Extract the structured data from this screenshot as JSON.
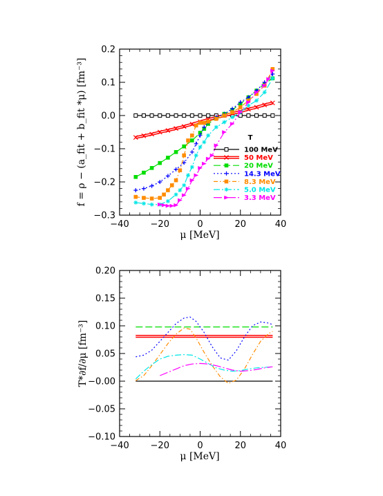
{
  "colors": {
    "black": "#000000",
    "red": "#ff0000",
    "green": "#00dd00",
    "blue": "#0000ff",
    "orange": "#ff8c00",
    "cyan": "#00e5e5",
    "magenta": "#ff00ff"
  },
  "chart_data": [
    {
      "type": "line",
      "panel": "top",
      "xlabel": "μ [MeV]",
      "ylabel": "f = ρ − (a_fit + b_fit *μ) [fm⁻³]",
      "xlim": [
        -40,
        40
      ],
      "ylim": [
        -0.3,
        0.2
      ],
      "xticks": [
        "−40",
        "−20",
        "0",
        "20",
        "40"
      ],
      "yticks": [
        "−0.3",
        "−0.2",
        "−0.1",
        "0.0",
        "0.1",
        "0.2"
      ],
      "legend_title": "T",
      "legend_position": "lower-right",
      "series": [
        {
          "name": "100 MeV",
          "color": "#000000",
          "marker": "square-open",
          "dash": "solid",
          "x": [
            -32,
            -28,
            -24,
            -20,
            -16,
            -12,
            -8,
            -4,
            0,
            4,
            8,
            12,
            16,
            20,
            24,
            28,
            32,
            36
          ],
          "y": [
            0,
            0,
            0,
            0,
            0,
            0,
            0,
            0,
            0,
            0,
            0,
            0,
            0,
            0,
            0,
            0,
            0,
            0
          ]
        },
        {
          "name": "50 MeV",
          "color": "#ff0000",
          "marker": "x",
          "dash": "double",
          "x": [
            -32,
            -28,
            -24,
            -20,
            -16,
            -12,
            -8,
            -4,
            0,
            4,
            8,
            12,
            16,
            20,
            24,
            28,
            32,
            36
          ],
          "y": [
            -0.066,
            -0.061,
            -0.056,
            -0.05,
            -0.045,
            -0.039,
            -0.033,
            -0.026,
            -0.019,
            -0.012,
            -0.006,
            0.0,
            0.006,
            0.012,
            0.019,
            0.025,
            0.032,
            0.038
          ]
        },
        {
          "name": "20 MeV",
          "color": "#00dd00",
          "marker": "square-filled",
          "dash": "long-dash",
          "x": [
            -32,
            -28,
            -24,
            -20,
            -16,
            -12,
            -8,
            -4,
            0,
            2,
            4,
            8,
            12,
            16,
            20,
            24,
            28,
            32,
            36
          ],
          "y": [
            -0.185,
            -0.172,
            -0.158,
            -0.143,
            -0.127,
            -0.11,
            -0.093,
            -0.075,
            -0.052,
            -0.04,
            -0.025,
            -0.008,
            0.005,
            0.017,
            0.035,
            0.055,
            0.075,
            0.095,
            0.112
          ]
        },
        {
          "name": "14.3 MeV",
          "color": "#0000ff",
          "marker": "plus",
          "dash": "dotted",
          "x": [
            -32,
            -28,
            -24,
            -20,
            -16,
            -12,
            -8,
            -4,
            -2,
            0,
            2,
            4,
            8,
            12,
            16,
            20,
            24,
            28,
            32,
            36
          ],
          "y": [
            -0.225,
            -0.22,
            -0.212,
            -0.2,
            -0.182,
            -0.162,
            -0.142,
            -0.11,
            -0.085,
            -0.06,
            -0.035,
            -0.02,
            -0.005,
            0.005,
            0.02,
            0.04,
            0.055,
            0.075,
            0.1,
            0.125
          ]
        },
        {
          "name": "8.3 MeV",
          "color": "#ff8c00",
          "marker": "square-filled",
          "dash": "dash-dot",
          "x": [
            -32,
            -28,
            -24,
            -20,
            -18,
            -16,
            -14,
            -12,
            -10,
            -8,
            -6,
            -4,
            -2,
            0,
            2,
            4,
            8,
            12,
            16,
            20,
            24,
            28,
            32,
            36
          ],
          "y": [
            -0.245,
            -0.248,
            -0.25,
            -0.248,
            -0.238,
            -0.225,
            -0.21,
            -0.195,
            -0.165,
            -0.12,
            -0.075,
            -0.06,
            -0.03,
            -0.022,
            -0.022,
            -0.018,
            -0.01,
            0.0,
            0.01,
            0.025,
            0.045,
            0.065,
            0.09,
            0.14
          ]
        },
        {
          "name": "5.0 MeV",
          "color": "#00e5e5",
          "marker": "star",
          "dash": "dash-dot-long",
          "x": [
            -32,
            -28,
            -24,
            -20,
            -16,
            -12,
            -10,
            -8,
            -6,
            -4,
            -2,
            0,
            2,
            4,
            8,
            12,
            16,
            20,
            24,
            28,
            32,
            36
          ],
          "y": [
            -0.262,
            -0.265,
            -0.268,
            -0.268,
            -0.258,
            -0.238,
            -0.225,
            -0.21,
            -0.18,
            -0.155,
            -0.12,
            -0.095,
            -0.08,
            -0.06,
            -0.035,
            -0.02,
            -0.005,
            0.01,
            0.03,
            0.045,
            0.07,
            0.112
          ]
        },
        {
          "name": "3.3 MeV",
          "color": "#ff00ff",
          "marker": "triangle",
          "dash": "long-dash-dot",
          "x": [
            -20,
            -18,
            -16,
            -14,
            -12,
            -10,
            -8,
            -6,
            -4,
            -2,
            0,
            2,
            4,
            6,
            8,
            12,
            16,
            20,
            24,
            28,
            32,
            34,
            36
          ],
          "y": [
            -0.268,
            -0.27,
            -0.272,
            -0.272,
            -0.27,
            -0.255,
            -0.24,
            -0.22,
            -0.195,
            -0.18,
            -0.158,
            -0.145,
            -0.13,
            -0.12,
            -0.09,
            -0.05,
            -0.025,
            0.01,
            0.04,
            0.07,
            0.09,
            0.11,
            0.135
          ]
        }
      ]
    },
    {
      "type": "line",
      "panel": "bottom",
      "xlabel": "μ [MeV]",
      "ylabel": "T*∂f/∂μ [fm⁻³]",
      "xlim": [
        -40,
        40
      ],
      "ylim": [
        -0.1,
        0.2
      ],
      "xticks": [
        "−40",
        "−20",
        "0",
        "20",
        "40"
      ],
      "yticks": [
        "−0.10",
        "−0.05",
        "−0.00",
        "0.05",
        "0.10",
        "0.15",
        "0.20"
      ],
      "series": [
        {
          "name": "100 MeV",
          "color": "#000000",
          "dash": "solid",
          "x": [
            -32,
            36
          ],
          "y": [
            0.0,
            0.0
          ]
        },
        {
          "name": "50 MeV",
          "color": "#ff0000",
          "dash": "double",
          "x": [
            -32,
            36
          ],
          "y": [
            0.081,
            0.081
          ]
        },
        {
          "name": "20 MeV",
          "color": "#00dd00",
          "dash": "long-dash",
          "x": [
            -32,
            36
          ],
          "y": [
            0.098,
            0.098
          ]
        },
        {
          "name": "14.3 MeV",
          "color": "#0000ff",
          "dash": "dotted",
          "x": [
            -32,
            -28,
            -24,
            -20,
            -16,
            -12,
            -8,
            -5,
            -2,
            2,
            6,
            10,
            14,
            18,
            22,
            26,
            30,
            34,
            36
          ],
          "y": [
            0.044,
            0.047,
            0.056,
            0.072,
            0.088,
            0.104,
            0.114,
            0.116,
            0.108,
            0.088,
            0.062,
            0.042,
            0.038,
            0.055,
            0.08,
            0.1,
            0.107,
            0.105,
            0.102
          ]
        },
        {
          "name": "8.3 MeV",
          "color": "#ff8c00",
          "dash": "dash-dot",
          "x": [
            -32,
            -28,
            -24,
            -20,
            -16,
            -12,
            -8,
            -5,
            -2,
            2,
            6,
            10,
            14,
            18,
            22,
            26,
            30,
            34,
            36
          ],
          "y": [
            0.001,
            0.01,
            0.028,
            0.048,
            0.068,
            0.085,
            0.096,
            0.094,
            0.078,
            0.052,
            0.028,
            0.008,
            -0.004,
            0.002,
            0.022,
            0.048,
            0.072,
            0.086,
            0.09
          ]
        },
        {
          "name": "5.0 MeV",
          "color": "#00e5e5",
          "dash": "dash-dot-long",
          "x": [
            -32,
            -28,
            -24,
            -20,
            -16,
            -12,
            -8,
            -4,
            0,
            4,
            8,
            12,
            16,
            20,
            24,
            28,
            32,
            36
          ],
          "y": [
            0.004,
            0.018,
            0.03,
            0.04,
            0.045,
            0.047,
            0.048,
            0.047,
            0.04,
            0.032,
            0.024,
            0.02,
            0.018,
            0.019,
            0.022,
            0.024,
            0.025,
            0.026
          ]
        },
        {
          "name": "3.3 MeV",
          "color": "#ff00ff",
          "dash": "long-dash-dot",
          "x": [
            -20,
            -16,
            -12,
            -8,
            -4,
            0,
            4,
            8,
            12,
            16,
            20,
            24,
            28,
            32,
            36
          ],
          "y": [
            0.01,
            0.016,
            0.022,
            0.028,
            0.031,
            0.032,
            0.031,
            0.028,
            0.024,
            0.02,
            0.018,
            0.019,
            0.021,
            0.024,
            0.026
          ]
        }
      ]
    }
  ]
}
